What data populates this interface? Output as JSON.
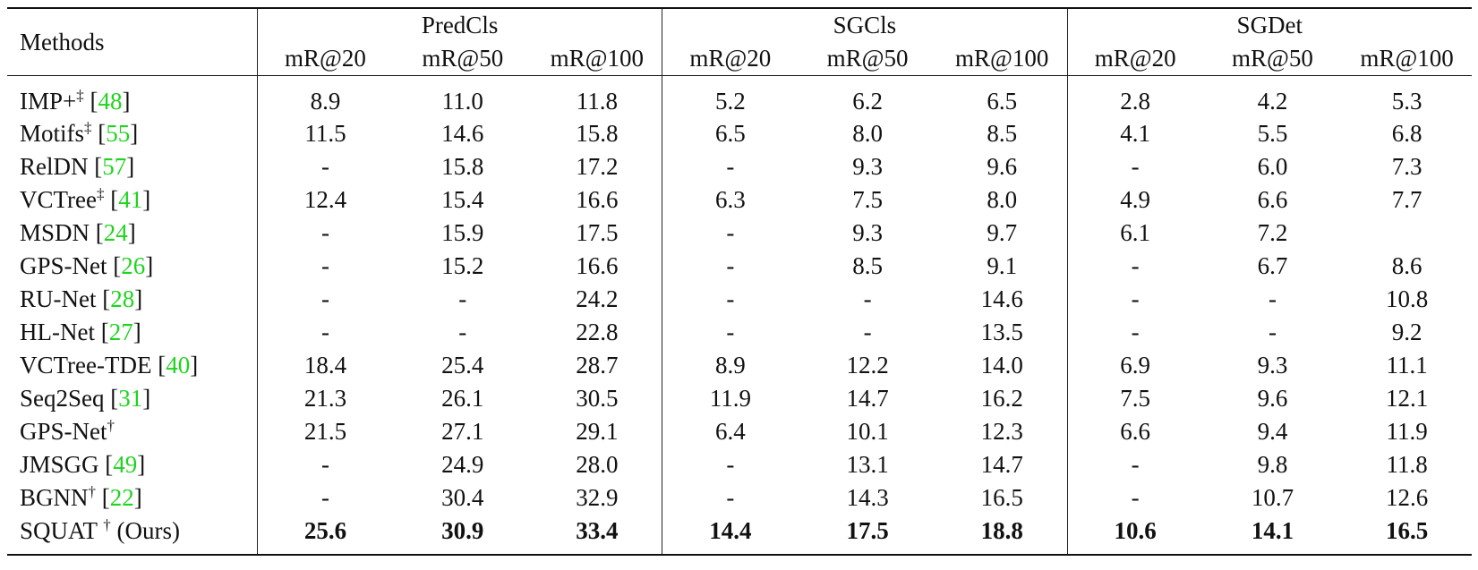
{
  "header": {
    "methods_label": "Methods",
    "groups": [
      "PredCls",
      "SGCls",
      "SGDet"
    ],
    "metrics": [
      "mR@20",
      "mR@50",
      "mR@100",
      "mR@20",
      "mR@50",
      "mR@100",
      "mR@20",
      "mR@50",
      "mR@100"
    ]
  },
  "rows": [
    {
      "name": "IMP+",
      "sup": "‡",
      "sep": "  ",
      "cite": "48",
      "values": [
        "8.9",
        "11.0",
        "11.8",
        "5.2",
        "6.2",
        "6.5",
        "2.8",
        "4.2",
        "5.3"
      ]
    },
    {
      "name": "Motifs",
      "sup": "‡",
      "sep": "  ",
      "cite": "55",
      "values": [
        "11.5",
        "14.6",
        "15.8",
        "6.5",
        "8.0",
        "8.5",
        "4.1",
        "5.5",
        "6.8"
      ]
    },
    {
      "name": "RelDN",
      "sup": "",
      "sep": " ",
      "cite": "57",
      "values": [
        "-",
        "15.8",
        "17.2",
        "-",
        "9.3",
        "9.6",
        "-",
        "6.0",
        "7.3"
      ]
    },
    {
      "name": "VCTree",
      "sup": "‡",
      "sep": " ",
      "cite": "41",
      "values": [
        "12.4",
        "15.4",
        "16.6",
        "6.3",
        "7.5",
        "8.0",
        "4.9",
        "6.6",
        "7.7"
      ]
    },
    {
      "name": "MSDN",
      "sup": "",
      "sep": " ",
      "cite": "24",
      "values": [
        "-",
        "15.9",
        "17.5",
        "-",
        "9.3",
        "9.7",
        "6.1",
        "7.2",
        ""
      ]
    },
    {
      "name": "GPS-Net",
      "sup": "",
      "sep": " ",
      "cite": "26",
      "values": [
        "-",
        "15.2",
        "16.6",
        "-",
        "8.5",
        "9.1",
        "-",
        "6.7",
        "8.6"
      ]
    },
    {
      "name": "RU-Net",
      "sup": "",
      "sep": " ",
      "cite": "28",
      "values": [
        "-",
        "-",
        "24.2",
        "-",
        "-",
        "14.6",
        "-",
        "-",
        "10.8"
      ]
    },
    {
      "name": "HL-Net",
      "sup": "",
      "sep": " ",
      "cite": "27",
      "values": [
        "-",
        "-",
        "22.8",
        "-",
        "-",
        "13.5",
        "-",
        "-",
        "9.2"
      ]
    },
    {
      "name": "VCTree-TDE",
      "sup": "",
      "sep": " ",
      "cite": "40",
      "values": [
        "18.4",
        "25.4",
        "28.7",
        "8.9",
        "12.2",
        "14.0",
        "6.9",
        "9.3",
        "11.1"
      ]
    },
    {
      "name": "Seq2Seq",
      "sup": "",
      "sep": " ",
      "cite": "31",
      "values": [
        "21.3",
        "26.1",
        "30.5",
        "11.9",
        "14.7",
        "16.2",
        "7.5",
        "9.6",
        "12.1"
      ]
    },
    {
      "name": "GPS-Net",
      "sup": "†",
      "sep": "",
      "cite": "",
      "values": [
        "21.5",
        "27.1",
        "29.1",
        "6.4",
        "10.1",
        "12.3",
        "6.6",
        "9.4",
        "11.9"
      ]
    },
    {
      "name": "JMSGG",
      "sup": "",
      "sep": " ",
      "cite": "49",
      "values": [
        "-",
        "24.9",
        "28.0",
        "-",
        "13.1",
        "14.7",
        "-",
        "9.8",
        "11.8"
      ]
    },
    {
      "name": "BGNN",
      "sup": "†",
      "sep": " ",
      "cite": "22",
      "values": [
        "-",
        "30.4",
        "32.9",
        "-",
        "14.3",
        "16.5",
        "-",
        "10.7",
        "12.6"
      ]
    }
  ],
  "ours": {
    "name": "SQUAT ",
    "sup": "†",
    "suffix": " (Ours)",
    "values": [
      "25.6",
      "30.9",
      "33.4",
      "14.4",
      "17.5",
      "18.8",
      "10.6",
      "14.1",
      "16.5"
    ]
  }
}
